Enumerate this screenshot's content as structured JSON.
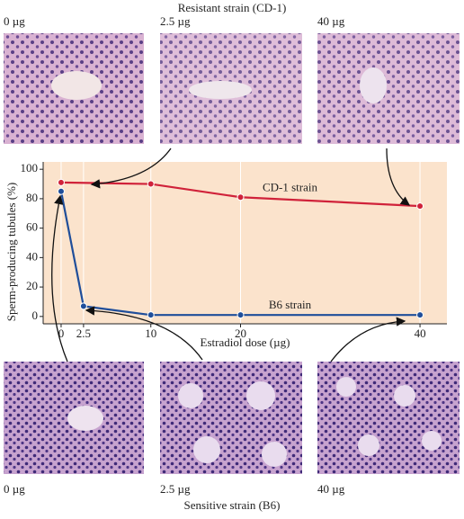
{
  "chart_data": {
    "type": "line",
    "xlabel": "Estradiol dose (µg)",
    "ylabel": "Sperm-producing tubules (%)",
    "xlim": [
      -2,
      43
    ],
    "xticks": [
      0,
      2.5,
      10,
      20,
      40
    ],
    "ylim": [
      -5,
      105
    ],
    "yticks": [
      0,
      20,
      40,
      60,
      80,
      100
    ],
    "grid": true,
    "series": [
      {
        "name": "CD-1 strain",
        "color": "#d0223a",
        "x": [
          0,
          10,
          20,
          40
        ],
        "values": [
          91,
          90,
          81,
          75
        ]
      },
      {
        "name": "B6 strain",
        "color": "#1f4e9a",
        "x": [
          0,
          2.5,
          10,
          20,
          40
        ],
        "values": [
          85,
          7,
          1,
          1,
          1
        ]
      }
    ]
  },
  "micrographs": {
    "top": {
      "title": "Resistant strain (CD-1)",
      "labels": [
        "0 µg",
        "2.5 µg",
        "40 µg"
      ]
    },
    "bottom": {
      "title": "Sensitive strain (B6)",
      "labels": [
        "0 µg",
        "2.5 µg",
        "40 µg"
      ]
    }
  }
}
